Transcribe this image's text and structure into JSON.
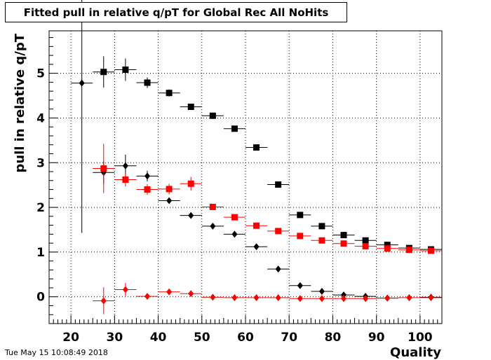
{
  "title": "Fitted pull in relative q/pT for Global Rec All NoHits",
  "timestamp": "Tue May 15 10:08:49 2018",
  "chart_data": {
    "type": "scatter",
    "title": "Fitted pull in relative q/pT for Global Rec All NoHits",
    "xlabel": "Quality",
    "ylabel": "pull in relative q/pT",
    "xlim": [
      15,
      105
    ],
    "ylim": [
      -0.6,
      5.95
    ],
    "xticks": [
      20,
      30,
      40,
      50,
      60,
      70,
      80,
      90,
      100
    ],
    "yticks": [
      0,
      1,
      2,
      3,
      4,
      5
    ],
    "grid": true,
    "x_halfwidth": 2.5,
    "series": [
      {
        "color": "#000000",
        "marker": "square",
        "points": [
          {
            "x": 27.5,
            "y": 5.03,
            "err": 0.35
          },
          {
            "x": 32.5,
            "y": 5.08,
            "err": 0.25
          },
          {
            "x": 37.5,
            "y": 4.79,
            "err": 0.12
          },
          {
            "x": 42.5,
            "y": 4.56,
            "err": 0.08
          },
          {
            "x": 47.5,
            "y": 4.25,
            "err": 0.05
          },
          {
            "x": 52.5,
            "y": 4.05,
            "err": 0.04
          },
          {
            "x": 57.5,
            "y": 3.76,
            "err": 0.04
          },
          {
            "x": 62.5,
            "y": 3.34,
            "err": 0.04
          },
          {
            "x": 67.5,
            "y": 2.51,
            "err": 0.03
          },
          {
            "x": 72.5,
            "y": 1.83,
            "err": 0.03
          },
          {
            "x": 77.5,
            "y": 1.58,
            "err": 0.02
          },
          {
            "x": 82.5,
            "y": 1.38,
            "err": 0.02
          },
          {
            "x": 87.5,
            "y": 1.26,
            "err": 0.02
          },
          {
            "x": 92.5,
            "y": 1.16,
            "err": 0.02
          },
          {
            "x": 97.5,
            "y": 1.09,
            "err": 0.02
          },
          {
            "x": 102.5,
            "y": 1.06,
            "err": 0.02
          }
        ]
      },
      {
        "color": "#000000",
        "marker": "diamond",
        "points": [
          {
            "x": 22.5,
            "y": 4.78,
            "err": 3.35
          },
          {
            "x": 27.5,
            "y": 2.78,
            "err": 0.25
          },
          {
            "x": 32.5,
            "y": 2.93,
            "err": 0.25
          },
          {
            "x": 37.5,
            "y": 2.7,
            "err": 0.12
          },
          {
            "x": 42.5,
            "y": 2.15,
            "err": 0.06
          },
          {
            "x": 47.5,
            "y": 1.82,
            "err": 0.04
          },
          {
            "x": 52.5,
            "y": 1.58,
            "err": 0.03
          },
          {
            "x": 57.5,
            "y": 1.4,
            "err": 0.03
          },
          {
            "x": 62.5,
            "y": 1.12,
            "err": 0.02
          },
          {
            "x": 67.5,
            "y": 0.62,
            "err": 0.02
          },
          {
            "x": 72.5,
            "y": 0.25,
            "err": 0.02
          },
          {
            "x": 77.5,
            "y": 0.12,
            "err": 0.02
          },
          {
            "x": 82.5,
            "y": 0.04,
            "err": 0.02
          },
          {
            "x": 87.5,
            "y": 0.01,
            "err": 0.02
          },
          {
            "x": 92.5,
            "y": -0.03,
            "err": 0.02
          },
          {
            "x": 97.5,
            "y": -0.02,
            "err": 0.02
          },
          {
            "x": 102.5,
            "y": -0.01,
            "err": 0.02
          }
        ]
      },
      {
        "color": "#ff0000",
        "marker": "square",
        "points": [
          {
            "x": 27.5,
            "y": 2.87,
            "err": 0.55
          },
          {
            "x": 32.5,
            "y": 2.62,
            "err": 0.15
          },
          {
            "x": 37.5,
            "y": 2.4,
            "err": 0.12
          },
          {
            "x": 42.5,
            "y": 2.41,
            "err": 0.12
          },
          {
            "x": 47.5,
            "y": 2.53,
            "err": 0.15
          },
          {
            "x": 52.5,
            "y": 2.01,
            "err": 0.04
          },
          {
            "x": 57.5,
            "y": 1.78,
            "err": 0.03
          },
          {
            "x": 62.5,
            "y": 1.59,
            "err": 0.03
          },
          {
            "x": 67.5,
            "y": 1.47,
            "err": 0.03
          },
          {
            "x": 72.5,
            "y": 1.36,
            "err": 0.02
          },
          {
            "x": 77.5,
            "y": 1.26,
            "err": 0.02
          },
          {
            "x": 82.5,
            "y": 1.19,
            "err": 0.02
          },
          {
            "x": 87.5,
            "y": 1.13,
            "err": 0.02
          },
          {
            "x": 92.5,
            "y": 1.08,
            "err": 0.02
          },
          {
            "x": 97.5,
            "y": 1.05,
            "err": 0.02
          },
          {
            "x": 102.5,
            "y": 1.03,
            "err": 0.02
          }
        ]
      },
      {
        "color": "#ff0000",
        "marker": "diamond",
        "points": [
          {
            "x": 27.5,
            "y": -0.09,
            "err": 0.3
          },
          {
            "x": 32.5,
            "y": 0.16,
            "err": 0.15
          },
          {
            "x": 37.5,
            "y": 0.01,
            "err": 0.05
          },
          {
            "x": 42.5,
            "y": 0.11,
            "err": 0.05
          },
          {
            "x": 47.5,
            "y": 0.07,
            "err": 0.04
          },
          {
            "x": 52.5,
            "y": -0.01,
            "err": 0.03
          },
          {
            "x": 57.5,
            "y": -0.02,
            "err": 0.02
          },
          {
            "x": 62.5,
            "y": -0.02,
            "err": 0.02
          },
          {
            "x": 67.5,
            "y": -0.02,
            "err": 0.02
          },
          {
            "x": 72.5,
            "y": -0.04,
            "err": 0.02
          },
          {
            "x": 77.5,
            "y": -0.04,
            "err": 0.02
          },
          {
            "x": 82.5,
            "y": -0.04,
            "err": 0.02
          },
          {
            "x": 87.5,
            "y": -0.04,
            "err": 0.02
          },
          {
            "x": 92.5,
            "y": -0.03,
            "err": 0.02
          },
          {
            "x": 97.5,
            "y": -0.02,
            "err": 0.02
          },
          {
            "x": 102.5,
            "y": -0.02,
            "err": 0.02
          }
        ]
      }
    ]
  }
}
